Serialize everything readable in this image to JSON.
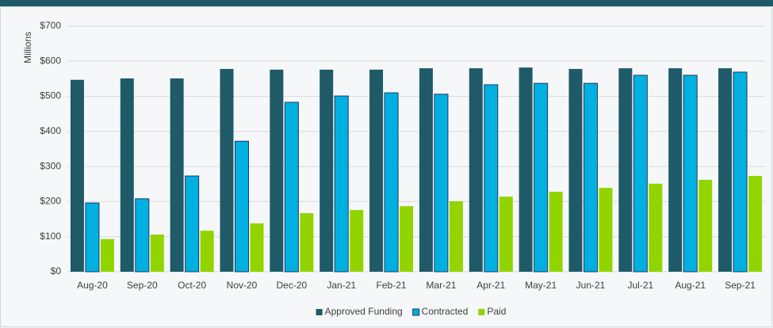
{
  "chart_data": {
    "type": "bar",
    "y_label": "Millions",
    "categories": [
      "Aug-20",
      "Sep-20",
      "Oct-20",
      "Nov-20",
      "Dec-20",
      "Jan-21",
      "Feb-21",
      "Mar-21",
      "Apr-21",
      "May-21",
      "Jun-21",
      "Jul-21",
      "Aug-21",
      "Sep-21"
    ],
    "series": [
      {
        "name": "Approved Funding",
        "color": "#1f5a68",
        "values": [
          547,
          551,
          551,
          578,
          576,
          576,
          576,
          580,
          580,
          582,
          578,
          580,
          580,
          580
        ]
      },
      {
        "name": "Contracted",
        "color": "#00b0e0",
        "values": [
          196,
          208,
          273,
          372,
          483,
          501,
          510,
          506,
          533,
          537,
          537,
          560,
          560,
          569
        ]
      },
      {
        "name": "Paid",
        "color": "#92d400",
        "values": [
          93,
          106,
          117,
          138,
          167,
          176,
          187,
          201,
          214,
          228,
          239,
          251,
          262,
          273
        ]
      }
    ],
    "ylim": [
      0,
      700
    ],
    "yticks": [
      {
        "value": 0,
        "label": "$0"
      },
      {
        "value": 100,
        "label": "$100"
      },
      {
        "value": 200,
        "label": "$200"
      },
      {
        "value": 300,
        "label": "$300"
      },
      {
        "value": 400,
        "label": "$400"
      },
      {
        "value": 500,
        "label": "$500"
      },
      {
        "value": 600,
        "label": "$600"
      },
      {
        "value": 700,
        "label": "$700"
      }
    ],
    "grid": true,
    "legend": "bottom"
  }
}
